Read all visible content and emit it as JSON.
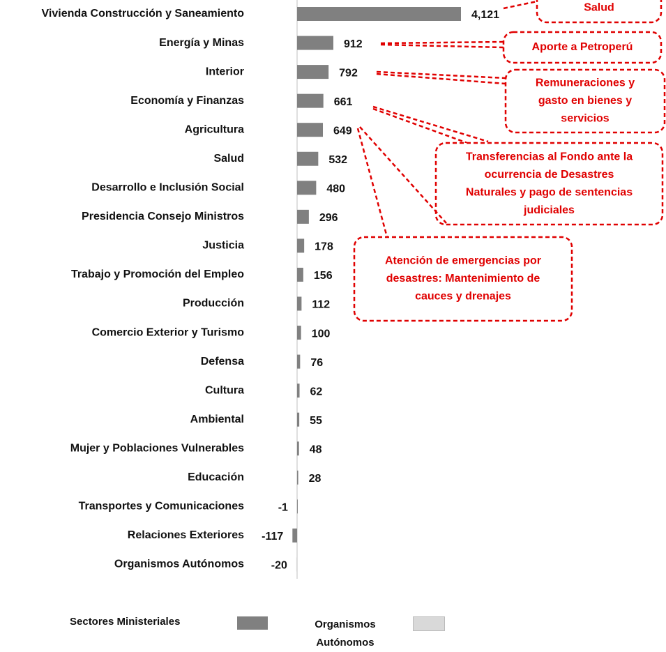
{
  "chart_data": {
    "type": "bar",
    "orientation": "horizontal",
    "categories": [
      "Vivienda Construcción y Saneamiento",
      "Energía y Minas",
      "Interior",
      "Economía y Finanzas",
      "Agricultura",
      "Salud",
      "Desarrollo e Inclusión Social",
      "Presidencia Consejo Ministros",
      "Justicia",
      "Trabajo y Promoción del Empleo",
      "Producción",
      "Comercio Exterior y Turismo",
      "Defensa",
      "Cultura",
      "Ambiental",
      "Mujer y Poblaciones Vulnerables",
      "Educación",
      "Transportes y Comunicaciones",
      "Relaciones Exteriores",
      "Organismos Autónomos"
    ],
    "series": [
      {
        "name": "Sectores Ministeriales",
        "color": "#808080",
        "values": [
          4121,
          912,
          792,
          661,
          649,
          532,
          480,
          296,
          178,
          156,
          112,
          100,
          76,
          62,
          55,
          48,
          28,
          -1,
          -117,
          null
        ],
        "value_labels": [
          "4,121",
          "912",
          "792",
          "661",
          "649",
          "532",
          "480",
          "296",
          "178",
          "156",
          "112",
          "100",
          "76",
          "62",
          "55",
          "48",
          "28",
          "-1",
          "-117",
          null
        ]
      },
      {
        "name": "Organismos Autónomos",
        "color": "#d9d9d9",
        "values": [
          null,
          null,
          null,
          null,
          null,
          null,
          null,
          null,
          null,
          null,
          null,
          null,
          null,
          null,
          null,
          null,
          null,
          null,
          null,
          -20
        ]
      }
    ],
    "annotations": [
      {
        "text": [
          "Salud"
        ]
      },
      {
        "text": [
          "Aporte a Petroperú"
        ]
      },
      {
        "text": [
          "Remuneraciones y",
          "gasto en bienes y",
          "servicios"
        ]
      },
      {
        "text": [
          "Transferencias al Fondo ante la",
          "ocurrencia de Desastres",
          "Naturales y pago de sentencias",
          "judiciales"
        ]
      },
      {
        "text": [
          "Atención de emergencias por",
          "desastres: Mantenimiento de",
          "cauces y drenajes"
        ]
      }
    ]
  }
}
